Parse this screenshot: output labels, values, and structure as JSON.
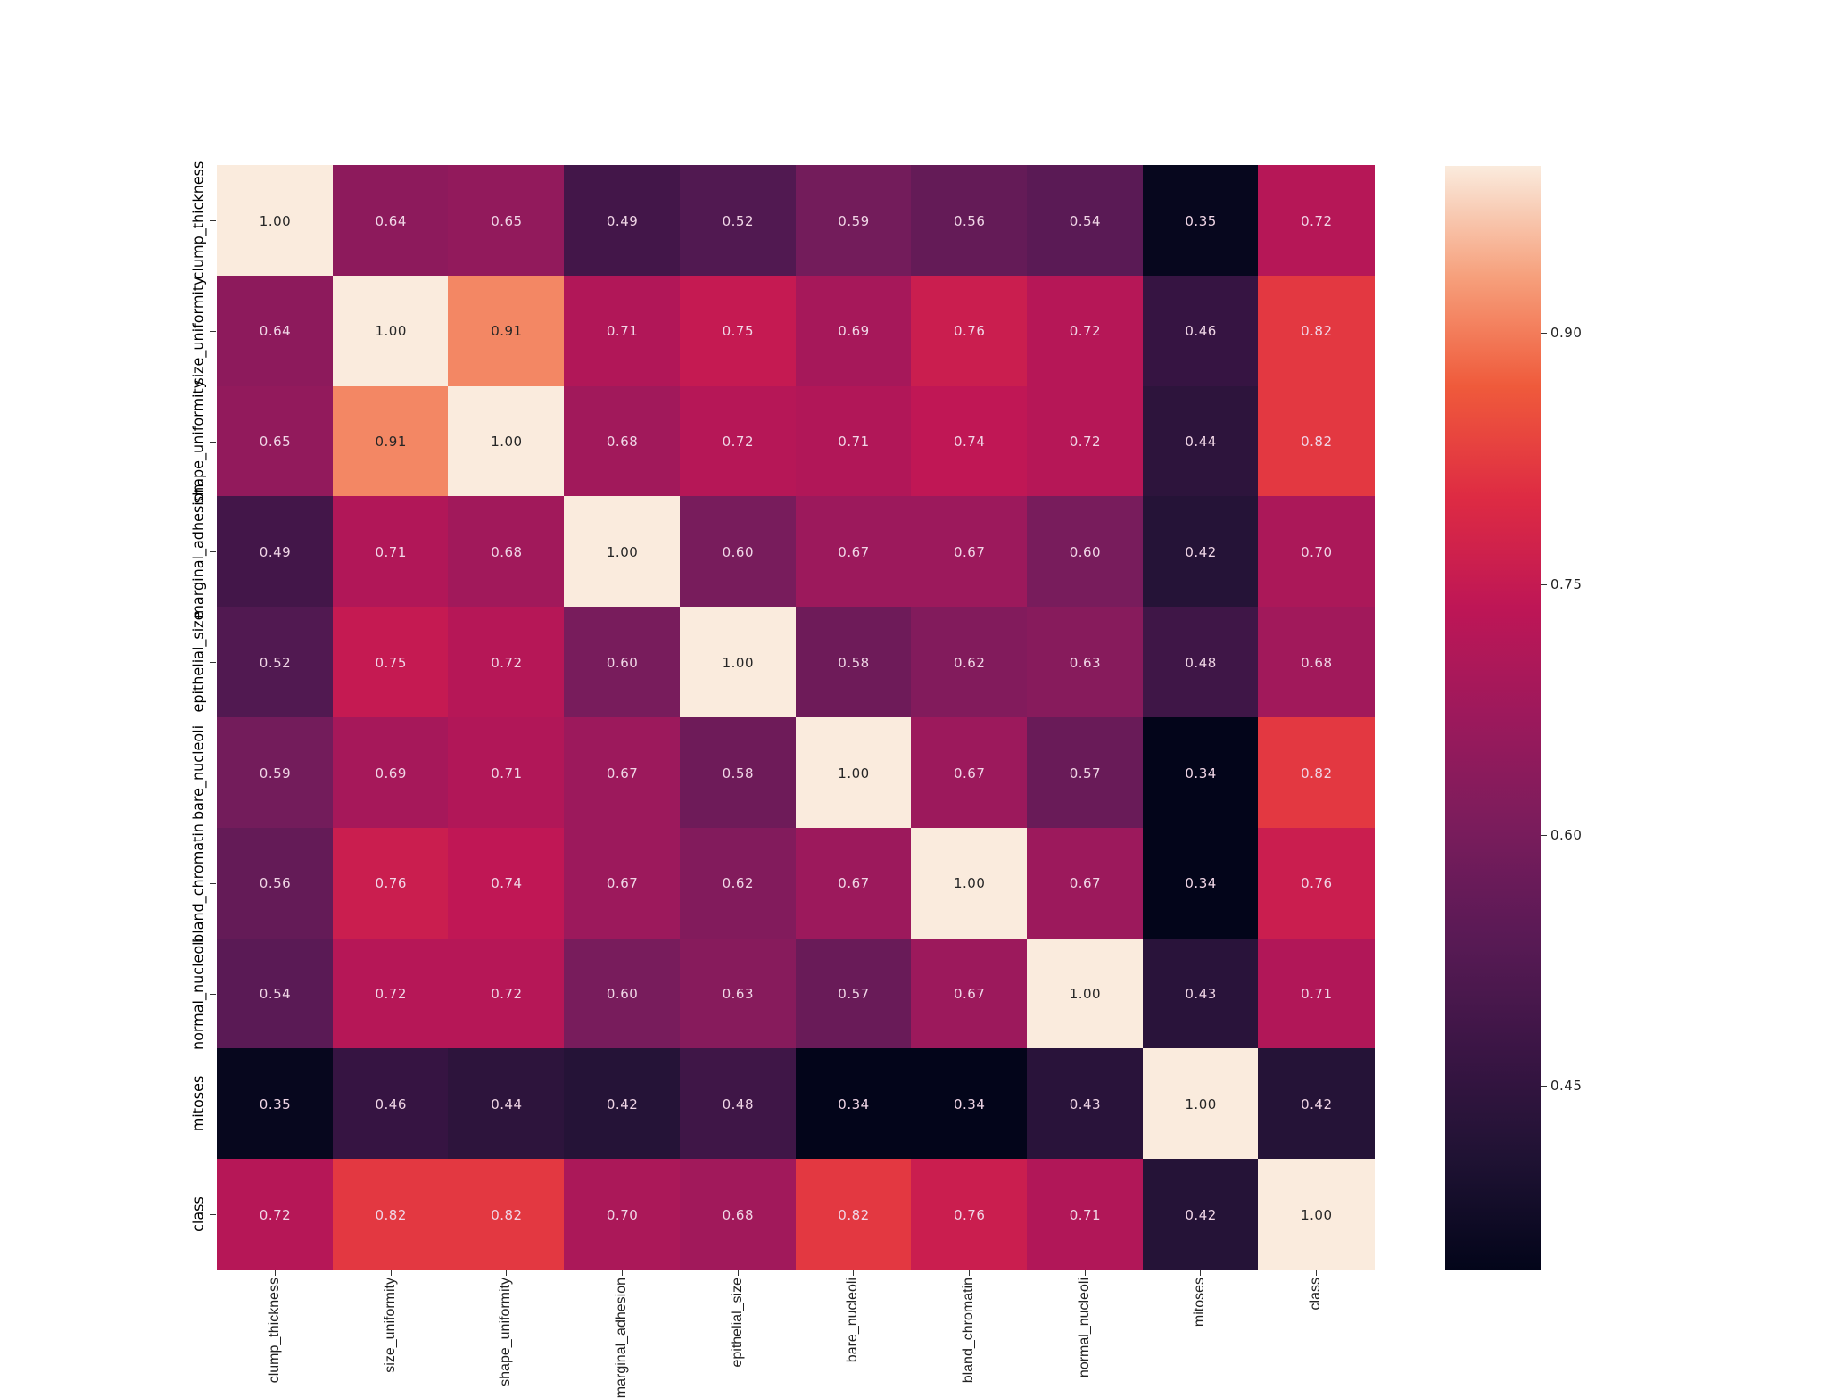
{
  "chart_data": {
    "type": "heatmap",
    "title": "",
    "xlabel": "",
    "ylabel": "",
    "labels": [
      "clump_thickness",
      "size_uniformity",
      "shape_uniformity",
      "marginal_adhesion",
      "epithelial_size",
      "bare_nucleoli",
      "bland_chromatin",
      "normal_nucleoli",
      "mitoses",
      "class"
    ],
    "matrix": [
      [
        1.0,
        0.64,
        0.65,
        0.49,
        0.52,
        0.59,
        0.56,
        0.54,
        0.35,
        0.72
      ],
      [
        0.64,
        1.0,
        0.91,
        0.71,
        0.75,
        0.69,
        0.76,
        0.72,
        0.46,
        0.82
      ],
      [
        0.65,
        0.91,
        1.0,
        0.68,
        0.72,
        0.71,
        0.74,
        0.72,
        0.44,
        0.82
      ],
      [
        0.49,
        0.71,
        0.68,
        1.0,
        0.6,
        0.67,
        0.67,
        0.6,
        0.42,
        0.7
      ],
      [
        0.52,
        0.75,
        0.72,
        0.6,
        1.0,
        0.58,
        0.62,
        0.63,
        0.48,
        0.68
      ],
      [
        0.59,
        0.69,
        0.71,
        0.67,
        0.58,
        1.0,
        0.67,
        0.57,
        0.34,
        0.82
      ],
      [
        0.56,
        0.76,
        0.74,
        0.67,
        0.62,
        0.67,
        1.0,
        0.67,
        0.34,
        0.76
      ],
      [
        0.54,
        0.72,
        0.72,
        0.6,
        0.63,
        0.57,
        0.67,
        1.0,
        0.43,
        0.71
      ],
      [
        0.35,
        0.46,
        0.44,
        0.42,
        0.48,
        0.34,
        0.34,
        0.43,
        1.0,
        0.42
      ],
      [
        0.72,
        0.82,
        0.82,
        0.7,
        0.68,
        0.82,
        0.76,
        0.71,
        0.42,
        1.0
      ]
    ],
    "annotation_format": "0.00",
    "colormap": "rocket",
    "vmin": 0.34,
    "vmax": 1.0,
    "colorbar": {
      "ticks": [
        0.45,
        0.6,
        0.75,
        0.9
      ],
      "tick_labels": [
        "0.45",
        "0.60",
        "0.75",
        "0.90"
      ],
      "position": "right"
    },
    "grid": false,
    "x_tick_rotation": 90,
    "y_tick_rotation": 90
  },
  "colors": {
    "background": "#ffffff",
    "text_dark": "#262626",
    "text_light": "#f0d6e6",
    "colormap_stops": [
      [
        0.0,
        "#03051a"
      ],
      [
        0.1,
        "#1f1233"
      ],
      [
        0.2,
        "#3b1545"
      ],
      [
        0.3,
        "#591a55"
      ],
      [
        0.4,
        "#7a1c5c"
      ],
      [
        0.5,
        "#9c195c"
      ],
      [
        0.6,
        "#be1656"
      ],
      [
        0.7,
        "#de2b43"
      ],
      [
        0.8,
        "#ef5a3b"
      ],
      [
        0.9,
        "#f6a07c"
      ],
      [
        1.0,
        "#faebdd"
      ]
    ]
  }
}
